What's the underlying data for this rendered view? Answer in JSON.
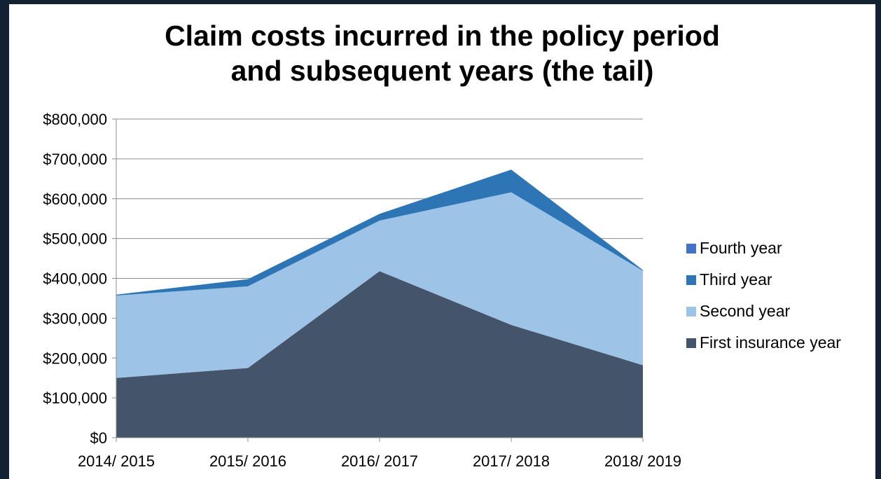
{
  "chart_data": {
    "type": "area",
    "stacked": true,
    "title": [
      "Claim costs incurred in the policy period",
      "and subsequent years (the tail)"
    ],
    "xlabel": "",
    "ylabel": "",
    "categories": [
      "2014/ 2015",
      "2015/ 2016",
      "2016/ 2017",
      "2017/ 2018",
      "2018/ 2019"
    ],
    "ylim": [
      0,
      800000
    ],
    "yticks": [
      0,
      100000,
      200000,
      300000,
      400000,
      500000,
      600000,
      700000,
      800000
    ],
    "ytick_labels": [
      "$0",
      "$100,000",
      "$200,000",
      "$300,000",
      "$400,000",
      "$500,000",
      "$600,000",
      "$700,000",
      "$800,000"
    ],
    "grid": "horizontal",
    "legend_position": "right",
    "series": [
      {
        "name": "First insurance year",
        "color": "#44546a",
        "values": [
          150000,
          175000,
          418000,
          283000,
          182000
        ]
      },
      {
        "name": "Second year",
        "color": "#9dc3e6",
        "values": [
          207000,
          205000,
          127000,
          333000,
          237000
        ]
      },
      {
        "name": "Third year",
        "color": "#2e75b6",
        "values": [
          2000,
          18000,
          17000,
          57000,
          2000
        ]
      },
      {
        "name": "Fourth year",
        "color": "#4472c4",
        "values": [
          0,
          0,
          0,
          0,
          0
        ]
      }
    ]
  }
}
